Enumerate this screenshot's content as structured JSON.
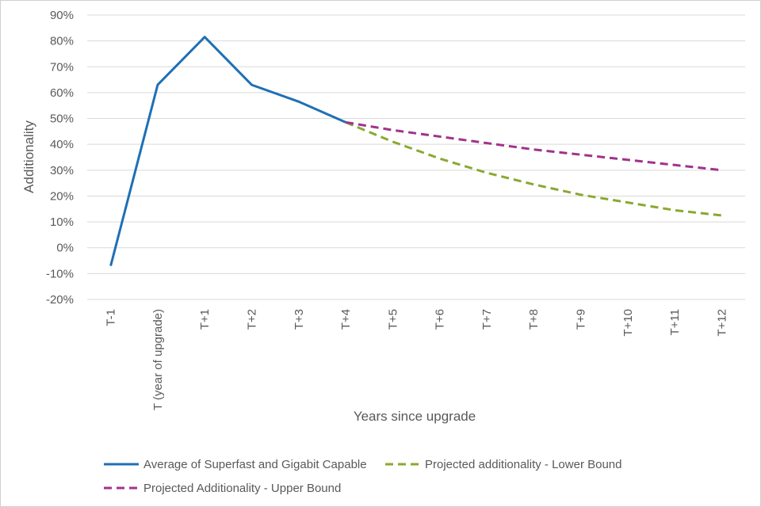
{
  "chart_data": {
    "type": "line",
    "title": "",
    "xlabel": "Years since upgrade",
    "ylabel": "Additionality",
    "ylim": [
      -0.2,
      0.9
    ],
    "ytick_step": 0.1,
    "y_format": "percent",
    "categories": [
      "T-1",
      "T (year of upgrade)",
      "T+1",
      "T+2",
      "T+3",
      "T+4",
      "T+5",
      "T+6",
      "T+7",
      "T+8",
      "T+9",
      "T+10",
      "T+11",
      "T+12"
    ],
    "series": [
      {
        "name": "Average of Superfast and Gigabit Capable",
        "color": "#1f6fb5",
        "style": "solid",
        "values": [
          -0.07,
          0.63,
          0.815,
          0.63,
          0.565,
          0.485,
          null,
          null,
          null,
          null,
          null,
          null,
          null,
          null
        ]
      },
      {
        "name": "Projected additionality - Lower Bound",
        "color": "#8aa832",
        "style": "dashed",
        "values": [
          null,
          null,
          null,
          null,
          null,
          0.485,
          0.41,
          0.345,
          0.29,
          0.245,
          0.205,
          0.175,
          0.145,
          0.125
        ]
      },
      {
        "name": "Projected Additionality - Upper Bound",
        "color": "#a0338c",
        "style": "dashed",
        "values": [
          null,
          null,
          null,
          null,
          null,
          0.485,
          0.455,
          0.43,
          0.405,
          0.38,
          0.36,
          0.34,
          0.32,
          0.3
        ]
      }
    ],
    "legend_position": "bottom",
    "grid": true
  }
}
